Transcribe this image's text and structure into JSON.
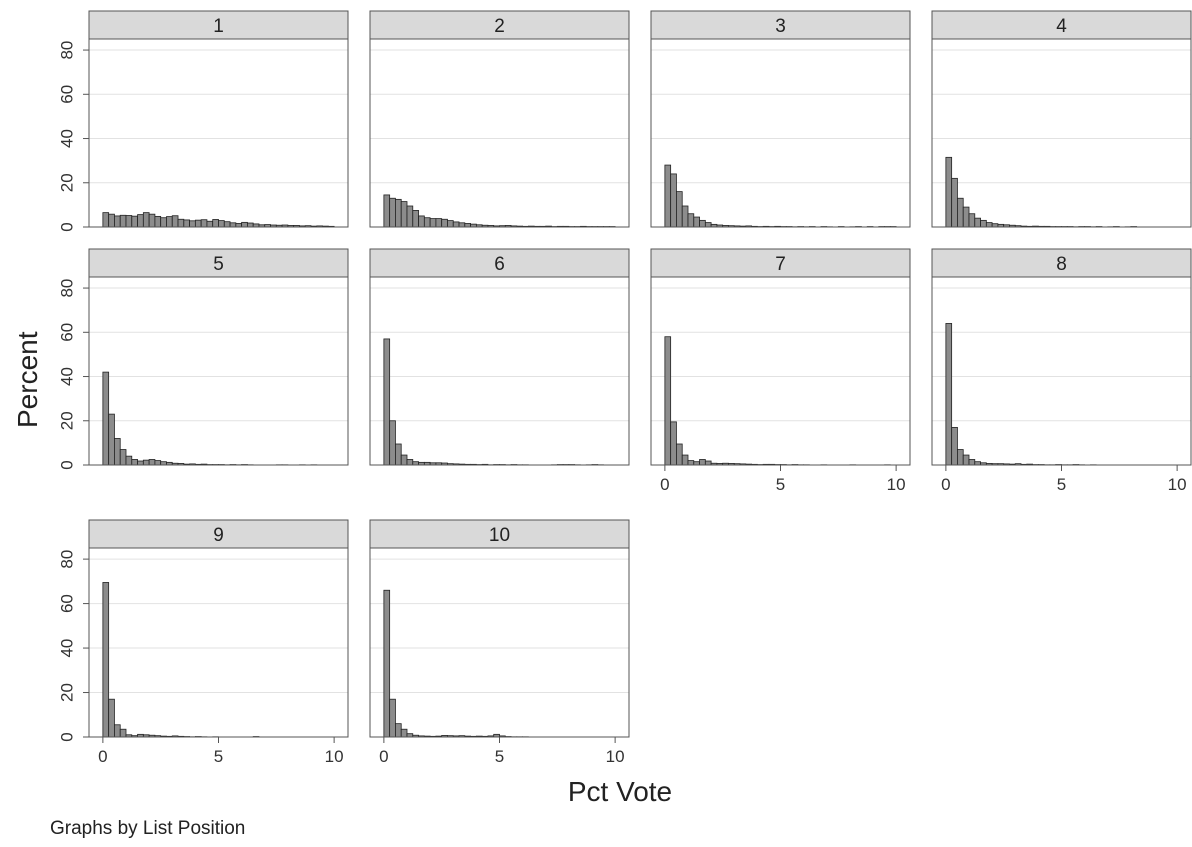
{
  "chart_data": {
    "type": "bar",
    "layout": "small-multiples histogram grid",
    "ylabel": "Percent",
    "xlabel": "Pct Vote",
    "note": "Graphs by List Position",
    "y_axis": {
      "range": [
        0,
        85
      ],
      "ticks": [
        0,
        20,
        40,
        60,
        80
      ]
    },
    "x_axis": {
      "range": [
        -0.6,
        10.6
      ],
      "ticks": [
        0,
        5,
        10
      ]
    },
    "bin_width": 0.25,
    "grid": true,
    "colors": {
      "bar_fill": "#8c8c8c",
      "bar_stroke": "#222222",
      "strip_fill": "#d9d9d9",
      "grid": "#e2e2e2",
      "frame": "#555555"
    },
    "panels": [
      {
        "label": "1",
        "show_x_ticks": false,
        "values": [
          6.5,
          5.8,
          5,
          5.3,
          5.2,
          4.9,
          5.6,
          6.5,
          5.8,
          4.8,
          4.2,
          4.7,
          5.1,
          3.5,
          3.2,
          2.8,
          3.1,
          3.3,
          2.6,
          3.4,
          2.9,
          2.4,
          1.9,
          1.6,
          2.1,
          1.8,
          1.4,
          1,
          1.1,
          0.9,
          0.8,
          0.9,
          0.7,
          0.7,
          0.5,
          0.6,
          0.4,
          0.5,
          0.4,
          0.3
        ]
      },
      {
        "label": "2",
        "show_x_ticks": false,
        "values": [
          14.5,
          13,
          12.5,
          11.5,
          9.5,
          7.5,
          5,
          4.2,
          3.8,
          3.8,
          3.5,
          2.9,
          2.3,
          1.9,
          1.6,
          1.3,
          1,
          0.8,
          0.7,
          0.5,
          0.6,
          0.7,
          0.5,
          0.4,
          0.3,
          0.4,
          0.3,
          0.3,
          0.4,
          0.2,
          0.3,
          0.3,
          0.2,
          0.2,
          0.3,
          0.2,
          0.2,
          0.2,
          0.2,
          0.2
        ]
      },
      {
        "label": "3",
        "show_x_ticks": false,
        "values": [
          28,
          24,
          16,
          9.5,
          6,
          4.5,
          3,
          2,
          1.2,
          0.9,
          0.7,
          0.6,
          0.5,
          0.4,
          0.5,
          0.3,
          0.2,
          0.3,
          0.2,
          0.3,
          0.2,
          0.2,
          0.1,
          0.2,
          0.1,
          0.2,
          0,
          0.2,
          0.1,
          0,
          0.2,
          0,
          0.1,
          0.2,
          0,
          0.2,
          0,
          0.2,
          0.2,
          0.2
        ]
      },
      {
        "label": "4",
        "show_x_ticks": false,
        "values": [
          31.5,
          22,
          13,
          9,
          6,
          4,
          3,
          2,
          1.5,
          1.2,
          1,
          0.8,
          0.6,
          0.4,
          0.3,
          0.4,
          0.3,
          0.3,
          0.2,
          0.2,
          0.2,
          0.2,
          0.1,
          0.2,
          0.2,
          0.1,
          0.2,
          0,
          0.1,
          0.2,
          0,
          0.1,
          0.2,
          0,
          0,
          0,
          0,
          0,
          0,
          0
        ]
      },
      {
        "label": "5",
        "show_x_ticks": false,
        "values": [
          42,
          23,
          12,
          7,
          4,
          2.5,
          1.8,
          2.2,
          2.5,
          2,
          1.5,
          1.2,
          0.8,
          0.7,
          0.4,
          0.5,
          0.3,
          0.4,
          0.2,
          0.2,
          0.2,
          0.1,
          0.2,
          0.1,
          0.2,
          0.1,
          0,
          0,
          0,
          0,
          0.1,
          0.1,
          0,
          0,
          0.1,
          0,
          0.1,
          0,
          0,
          0
        ]
      },
      {
        "label": "6",
        "show_x_ticks": false,
        "values": [
          57,
          20,
          9.5,
          4.5,
          2.5,
          1.5,
          1.2,
          1.2,
          1,
          1,
          0.9,
          0.6,
          0.5,
          0.4,
          0.3,
          0.3,
          0.2,
          0.3,
          0.1,
          0.2,
          0.2,
          0.1,
          0.2,
          0.1,
          0.1,
          0,
          0,
          0,
          0,
          0.1,
          0.2,
          0.2,
          0.2,
          0.1,
          0,
          0.1,
          0.2,
          0.1,
          0,
          0
        ]
      },
      {
        "label": "7",
        "show_x_ticks": true,
        "values": [
          58,
          19.5,
          9.5,
          4.5,
          2,
          1.5,
          2.5,
          1.8,
          0.8,
          0.7,
          0.8,
          0.7,
          0.6,
          0.5,
          0.4,
          0.3,
          0.2,
          0.3,
          0.3,
          0.2,
          0.2,
          0.1,
          0.2,
          0.1,
          0.1,
          0,
          0,
          0.1,
          0,
          0,
          0,
          0,
          0.1,
          0,
          0,
          0,
          0,
          0,
          0.1,
          0
        ]
      },
      {
        "label": "8",
        "show_x_ticks": true,
        "values": [
          64,
          17,
          7,
          4.5,
          2.5,
          1.5,
          1,
          0.7,
          0.6,
          0.6,
          0.5,
          0.4,
          0.6,
          0.3,
          0.4,
          0.2,
          0.2,
          0.1,
          0.1,
          0.2,
          0.1,
          0.1,
          0.2,
          0.1,
          0,
          0.1,
          0,
          0,
          0,
          0,
          0,
          0,
          0,
          0,
          0,
          0,
          0,
          0,
          0,
          0
        ]
      },
      {
        "label": "9",
        "show_x_ticks": true,
        "values": [
          69.5,
          17,
          5.5,
          3.5,
          1,
          0.6,
          1.2,
          1,
          0.8,
          0.6,
          0.4,
          0.3,
          0.5,
          0.3,
          0.2,
          0.1,
          0.2,
          0.1,
          0,
          0.1,
          0,
          0,
          0,
          0,
          0,
          0,
          0.2,
          0,
          0,
          0,
          0,
          0,
          0,
          0,
          0,
          0,
          0,
          0,
          0,
          0
        ]
      },
      {
        "label": "10",
        "show_x_ticks": true,
        "values": [
          66,
          17,
          6,
          3.5,
          1.5,
          0.8,
          0.5,
          0.4,
          0.3,
          0.4,
          0.7,
          0.6,
          0.5,
          0.6,
          0.4,
          0.3,
          0.4,
          0.3,
          0.5,
          1.2,
          0.5,
          0.2,
          0.1,
          0.1,
          0.1,
          0,
          0,
          0,
          0,
          0,
          0,
          0,
          0,
          0,
          0,
          0,
          0,
          0,
          0,
          0
        ]
      }
    ]
  }
}
